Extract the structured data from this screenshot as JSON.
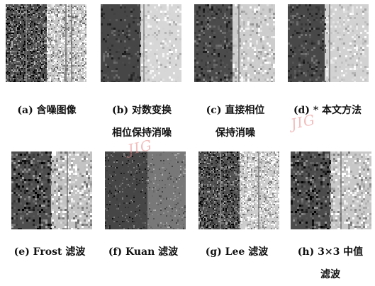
{
  "panels": [
    {
      "id": "a",
      "label": "(a) 含噪图像",
      "line2": ""
    },
    {
      "id": "b",
      "label": "(b) 对数变换",
      "line2": "相位保持消噪"
    },
    {
      "id": "c",
      "label": "(c) 直接相位",
      "line2": "保持消噪"
    },
    {
      "id": "d",
      "label": "(d) * 本文方法",
      "line2": ""
    },
    {
      "id": "e",
      "label": "(e) Frost 滤波",
      "line2": ""
    },
    {
      "id": "f",
      "label": "(f) Kuan 滤波",
      "line2": ""
    },
    {
      "id": "g",
      "label": "(g) Lee 滤波",
      "line2": ""
    },
    {
      "id": "h",
      "label": "(h) 3×3 中值",
      "line2": "滤波"
    }
  ],
  "watermark": "JIG"
}
